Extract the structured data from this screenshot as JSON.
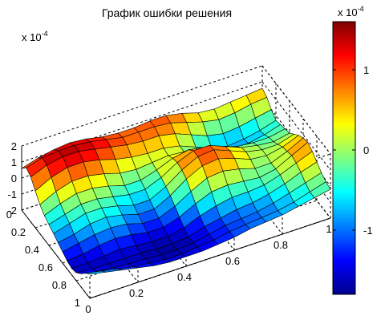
{
  "chart_data": {
    "type": "surface",
    "title": "График ошибки решения",
    "x_ticks": [
      "0",
      "0.2",
      "0.4",
      "0.6",
      "0.8",
      "1"
    ],
    "y_ticks": [
      "0",
      "0.2",
      "0.4",
      "0.6",
      "0.8",
      "1"
    ],
    "z_ticks": [
      "2",
      "1",
      "0",
      "-1",
      "-2"
    ],
    "z_exponent_label": "x 10",
    "z_exponent_power": "-4",
    "xlim": [
      0,
      1
    ],
    "ylim": [
      0,
      1
    ],
    "zlim": [
      -0.0002,
      0.0002
    ],
    "grid": true,
    "colormap": "jet",
    "grid_points": 16,
    "z_surface_e4": [
      [
        0.6,
        0.9,
        1.1,
        1.2,
        1.1,
        0.9,
        0.8,
        0.8,
        0.9,
        0.9,
        0.7,
        0.4,
        0.3,
        0.4,
        0.5,
        0.6
      ],
      [
        1.0,
        1.3,
        1.4,
        1.4,
        1.3,
        1.1,
        0.9,
        0.9,
        0.9,
        0.8,
        0.5,
        0.2,
        0.0,
        0.1,
        0.3,
        0.4
      ],
      [
        0.8,
        1.2,
        1.4,
        1.4,
        1.2,
        1.0,
        0.8,
        0.7,
        0.7,
        0.5,
        0.1,
        -0.3,
        -0.5,
        -0.4,
        -0.2,
        0.0
      ],
      [
        0.3,
        0.8,
        1.1,
        1.1,
        0.9,
        0.6,
        0.4,
        0.3,
        0.3,
        0.1,
        -0.3,
        -0.7,
        -0.9,
        -0.8,
        -0.6,
        -0.3
      ],
      [
        -0.2,
        0.3,
        0.6,
        0.6,
        0.4,
        0.1,
        0.0,
        0.1,
        0.2,
        0.1,
        -0.2,
        -0.5,
        -0.7,
        -0.7,
        -0.5,
        -0.2
      ],
      [
        -0.5,
        -0.1,
        0.2,
        0.2,
        0.0,
        -0.3,
        -0.3,
        0.0,
        0.4,
        0.6,
        0.4,
        0.1,
        -0.2,
        -0.3,
        -0.3,
        -0.1
      ],
      [
        -0.7,
        -0.4,
        -0.1,
        -0.1,
        -0.3,
        -0.5,
        -0.5,
        -0.1,
        0.5,
        0.9,
        0.9,
        0.5,
        0.1,
        -0.1,
        -0.2,
        0.0
      ],
      [
        -0.9,
        -0.6,
        -0.3,
        -0.3,
        -0.5,
        -0.8,
        -0.8,
        -0.3,
        0.4,
        0.9,
        1.0,
        0.6,
        0.2,
        0.0,
        0.0,
        0.3
      ],
      [
        -1.1,
        -0.9,
        -0.6,
        -0.5,
        -0.7,
        -1.0,
        -1.0,
        -0.5,
        0.2,
        0.7,
        0.8,
        0.5,
        0.1,
        0.0,
        0.2,
        0.6
      ],
      [
        -1.3,
        -1.1,
        -0.9,
        -0.8,
        -0.9,
        -1.2,
        -1.2,
        -0.8,
        -0.2,
        0.3,
        0.4,
        0.2,
        -0.1,
        -0.1,
        0.3,
        0.8
      ],
      [
        -1.5,
        -1.4,
        -1.2,
        -1.1,
        -1.2,
        -1.4,
        -1.4,
        -1.1,
        -0.6,
        -0.2,
        -0.1,
        -0.2,
        -0.3,
        -0.1,
        0.4,
        0.9
      ],
      [
        -1.6,
        -1.6,
        -1.5,
        -1.4,
        -1.5,
        -1.6,
        -1.6,
        -1.4,
        -1.0,
        -0.7,
        -0.5,
        -0.5,
        -0.4,
        -0.1,
        0.3,
        0.7
      ],
      [
        -1.5,
        -1.6,
        -1.6,
        -1.6,
        -1.6,
        -1.7,
        -1.7,
        -1.6,
        -1.3,
        -1.1,
        -0.9,
        -0.8,
        -0.6,
        -0.3,
        0.1,
        0.4
      ],
      [
        -1.2,
        -1.4,
        -1.5,
        -1.6,
        -1.6,
        -1.7,
        -1.7,
        -1.6,
        -1.4,
        -1.2,
        -1.1,
        -1.0,
        -0.8,
        -0.5,
        -0.2,
        0.1
      ],
      [
        -0.8,
        -1.0,
        -1.2,
        -1.4,
        -1.5,
        -1.6,
        -1.6,
        -1.5,
        -1.4,
        -1.2,
        -1.1,
        -1.0,
        -0.9,
        -0.7,
        -0.4,
        -0.1
      ],
      [
        -0.5,
        -0.7,
        -0.9,
        -1.1,
        -1.3,
        -1.4,
        -1.4,
        -1.4,
        -1.3,
        -1.2,
        -1.0,
        -0.9,
        -0.8,
        -0.6,
        -0.4,
        -0.2
      ]
    ],
    "colorbar": {
      "ticks": [
        "1",
        "0",
        "-1"
      ],
      "exponent_label": "x 10",
      "exponent_power": "-4",
      "range_e4": [
        -1.8,
        1.6
      ]
    }
  }
}
